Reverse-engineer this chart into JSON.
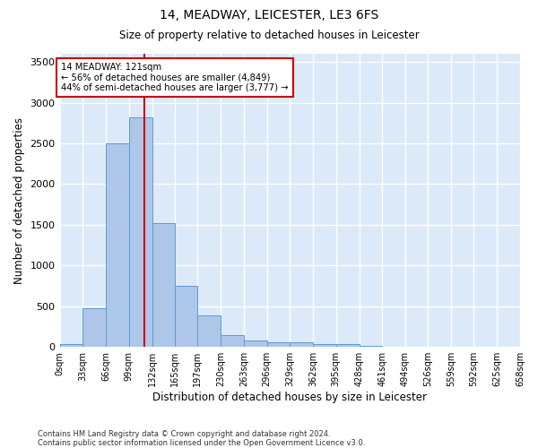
{
  "title1": "14, MEADWAY, LEICESTER, LE3 6FS",
  "title2": "Size of property relative to detached houses in Leicester",
  "xlabel": "Distribution of detached houses by size in Leicester",
  "ylabel": "Number of detached properties",
  "annotation_line1": "14 MEADWAY: 121sqm",
  "annotation_line2": "← 56% of detached houses are smaller (4,849)",
  "annotation_line3": "44% of semi-detached houses are larger (3,777) →",
  "property_size_sqm": 121,
  "bin_edges": [
    0,
    33,
    66,
    99,
    132,
    165,
    197,
    230,
    263,
    296,
    329,
    362,
    395,
    428,
    461,
    494,
    526,
    559,
    592,
    625,
    658
  ],
  "bar_heights": [
    30,
    480,
    2500,
    2820,
    1520,
    750,
    390,
    145,
    80,
    60,
    60,
    35,
    30,
    10,
    5,
    5,
    2,
    2,
    2,
    2
  ],
  "bar_color": "#aec6e8",
  "bar_edge_color": "#5b9bd5",
  "vline_color": "#cc0000",
  "vline_x": 121,
  "annotation_box_edge_color": "#cc0000",
  "annotation_box_face_color": "#ffffff",
  "background_color": "#dce9f8",
  "grid_color": "#ffffff",
  "ylim": [
    0,
    3600
  ],
  "yticks": [
    0,
    500,
    1000,
    1500,
    2000,
    2500,
    3000,
    3500
  ],
  "footnote1": "Contains HM Land Registry data © Crown copyright and database right 2024.",
  "footnote2": "Contains public sector information licensed under the Open Government Licence v3.0."
}
